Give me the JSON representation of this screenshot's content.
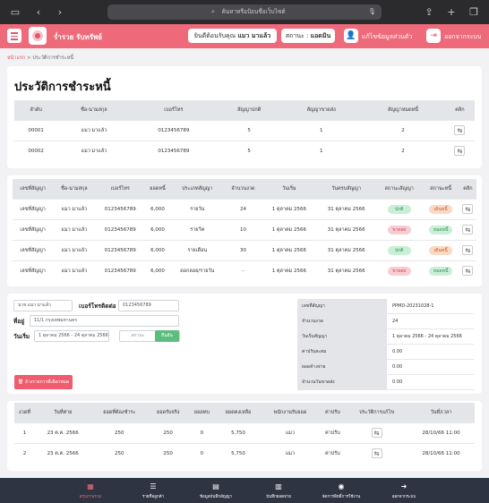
{
  "browser": {
    "url_placeholder": "ค้นหาหรือป้อนชื่อเว็บไซต์",
    "icons": [
      "sidebar-icon",
      "back-icon",
      "forward-icon",
      "search-icon",
      "mic-icon",
      "share-icon",
      "new-tab-icon",
      "tabs-icon"
    ]
  },
  "header": {
    "brand": "ร่ำรวย รับทรัพย์",
    "welcome_prefix": "ยินดีต้อนรับคุณ",
    "welcome_name": "แมว มาแล้ว",
    "status_prefix": "สถานะ :",
    "status_value": "แอดมิน",
    "profile_label": "แก้ไขข้อมูลส่วนตัว",
    "logout_label": "ออกจากระบบ",
    "accent": "#ee6a7a"
  },
  "breadcrumb": {
    "home": "หน้าแรก",
    "sep": ">",
    "current": "ประวัติการชำระหนี้"
  },
  "page_title": "ประวัติการชำระหนี้",
  "summary_table": {
    "headers": [
      "ลำดับ",
      "ชื่อ-นามสกุล",
      "เบอร์โทร",
      "สัญญาปกติ",
      "สัญญาขาดส่ง",
      "สัญญาหมดหนี้",
      "คลิก"
    ],
    "rows": [
      [
        "00001",
        "แมว มาแล้ว",
        "0123456789",
        "5",
        "1",
        "2"
      ],
      [
        "00002",
        "แมว มาแล้ว",
        "0123456789",
        "5",
        "1",
        "2"
      ]
    ]
  },
  "contract_table": {
    "headers": [
      "เลขที่สัญญา",
      "ชื่อ-นามสกุล",
      "เบอร์โทร",
      "ยอดหนี้",
      "ประเภทสัญญา",
      "จำนวนงวด",
      "วันเริ่ม",
      "วันครบสัญญา",
      "สถานะสัญญา",
      "สถานะหนี้",
      "คลิก"
    ],
    "rows": [
      {
        "no": "เลขที่สัญญา",
        "name": "แมว มาแล้ว",
        "phone": "0123456789",
        "amount": "6,000",
        "type": "รายวัน",
        "periods": "24",
        "start": "1 ตุลาคม 2566",
        "end": "31 ตุลาคม 2566",
        "cstatus": "ปกติ",
        "cstatus_kind": "green",
        "dstatus": "เดินหนี้",
        "dstatus_kind": "orange"
      },
      {
        "no": "เลขที่สัญญา",
        "name": "แมว มาแล้ว",
        "phone": "0123456789",
        "amount": "6,000",
        "type": "รายวีค",
        "periods": "10",
        "start": "1 ตุลาคม 2566",
        "end": "31 ตุลาคม 2566",
        "cstatus": "ขาดส่ง",
        "cstatus_kind": "red",
        "dstatus": "หมดหนี้",
        "dstatus_kind": "green"
      },
      {
        "no": "เลขที่สัญญา",
        "name": "แมว มาแล้ว",
        "phone": "0123456789",
        "amount": "6,000",
        "type": "รายเดือน",
        "periods": "30",
        "start": "1 ตุลาคม 2566",
        "end": "31 ตุลาคม 2566",
        "cstatus": "ปกติ",
        "cstatus_kind": "green",
        "dstatus": "เดินหนี้",
        "dstatus_kind": "orange"
      },
      {
        "no": "เลขที่สัญญา",
        "name": "แมว มาแล้ว",
        "phone": "0123456789",
        "amount": "6,000",
        "type": "ดอกลอย/รายวัน",
        "periods": "-",
        "start": "1 ตุลาคม 2566",
        "end": "31 ตุลาคม 2566",
        "cstatus": "ขาดส่ง",
        "cstatus_kind": "red",
        "dstatus": "หมดหนี้",
        "dstatus_kind": "green"
      }
    ]
  },
  "form": {
    "name_value": "นาย แมว มาแล้ว",
    "phone_label": "เบอร์โทรติดต่อ",
    "phone_value": "0123456789",
    "address_label": "ที่อยู่",
    "address_value": "11/1 กรุงเทพมหานคร",
    "start_label": "วันเริ่ม",
    "date_range": "1 ตุลาคม 2566 - 24 ตุลาคม 2566",
    "status_placeholder": "สถานะ",
    "submit_label": "ยืนยัน",
    "delete_label": "ล้างรายการที่เลือกหมด"
  },
  "info_panel": {
    "rows": [
      {
        "k": "เลขที่สัญญา",
        "v": "PPMD-20231028-1"
      },
      {
        "k": "จำนวนงวด",
        "v": "24"
      },
      {
        "k": "วันเริ่มสัญญา",
        "v": "1 ตุลาคม 2566 - 24 ตุลาคม 2566"
      },
      {
        "k": "ค่าปรับสะสม",
        "v": "0.00"
      },
      {
        "k": "ยอดค้างจ่าย",
        "v": "0.00"
      },
      {
        "k": "จำนวนวันขาดส่ง",
        "v": "0.00"
      }
    ]
  },
  "payment_table": {
    "headers": [
      "งวดที่",
      "วันที่ต่าย",
      "ยอดที่ต้องชำระ",
      "ยอดรับจริง",
      "ยอดทบ",
      "ยอดคงเหลือ",
      "พนักงานรับยอด",
      "ค่าปรับ",
      "ประวัติการแก้ไข",
      "วันที่/เวลา"
    ],
    "rows": [
      [
        "1",
        "23 ต.ค. 2566",
        "250",
        "250",
        "0",
        "5,750",
        "แมว",
        "ค่าปรับ",
        "28/10/66 11:00"
      ],
      [
        "2",
        "23 ต.ค. 2566",
        "250",
        "250",
        "0",
        "5,750",
        "แมว",
        "ค่าปรับ",
        "28/10/66 11:00"
      ]
    ]
  },
  "bottom_nav": [
    {
      "label": "สรุปภาพรวม",
      "icon": "dashboard-icon",
      "active": true
    },
    {
      "label": "รายชื่อลูกค้า",
      "icon": "customer-list-icon",
      "active": false
    },
    {
      "label": "ข้อมูลบันทึกสัญญา",
      "icon": "contract-icon",
      "active": false
    },
    {
      "label": "บันทึกยอดจ่าย",
      "icon": "payment-record-icon",
      "active": false
    },
    {
      "label": "จัดการสิทธิ์การใช้งาน",
      "icon": "permission-icon",
      "active": false
    },
    {
      "label": "ออกจากระบบ",
      "icon": "logout-icon",
      "active": false
    }
  ]
}
